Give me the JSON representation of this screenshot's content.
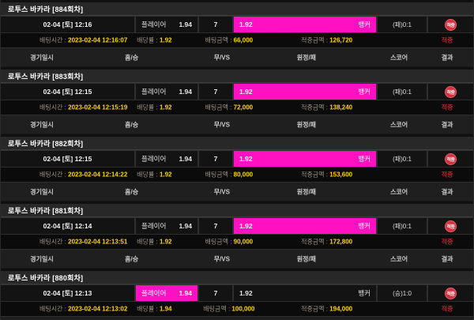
{
  "colors": {
    "accent_pink": "#ff10c0",
    "value_yellow": "#ffd400",
    "hit_badge_red": "#d42f3c",
    "hit_text_red": "#b5232b"
  },
  "labels": {
    "col_headers": [
      "경기일시",
      "홈/승",
      "무/VS",
      "원정/패",
      "스코어",
      "결과"
    ],
    "bet_time_label": "배팅시간 :",
    "odds_label": "배당률 :",
    "bet_amount_label": "배팅금액 :",
    "win_amount_label": "적중금액 :",
    "hit_text": "적중",
    "hit_badge": "적중"
  },
  "rounds": [
    {
      "title": "로투스 바카라 [884회차]",
      "datetime": "02-04 [토] 12:16",
      "player_label": "플레이어",
      "player_odds": "1.94",
      "tie_odds": "7",
      "banker_label": "뱅커",
      "banker_odds": "1.92",
      "picked": "banker",
      "score": "(패)0:1",
      "bet_time": "2023-02-04 12:16:07",
      "odds": "1.92",
      "bet_amount": "66,000",
      "win_amount": "126,720"
    },
    {
      "title": "로투스 바카라 [883회차]",
      "datetime": "02-04 [토] 12:15",
      "player_label": "플레이어",
      "player_odds": "1.94",
      "tie_odds": "7",
      "banker_label": "뱅커",
      "banker_odds": "1.92",
      "picked": "banker",
      "score": "(패)0:1",
      "bet_time": "2023-02-04 12:15:19",
      "odds": "1.92",
      "bet_amount": "72,000",
      "win_amount": "138,240"
    },
    {
      "title": "로투스 바카라 [882회차]",
      "datetime": "02-04 [토] 12:15",
      "player_label": "플레이어",
      "player_odds": "1.94",
      "tie_odds": "7",
      "banker_label": "뱅커",
      "banker_odds": "1.92",
      "picked": "banker",
      "score": "(패)0:1",
      "bet_time": "2023-02-04 12:14:22",
      "odds": "1.92",
      "bet_amount": "80,000",
      "win_amount": "153,600"
    },
    {
      "title": "로투스 바카라 [881회차]",
      "datetime": "02-04 [토] 12:14",
      "player_label": "플레이어",
      "player_odds": "1.94",
      "tie_odds": "7",
      "banker_label": "뱅커",
      "banker_odds": "1.92",
      "picked": "banker",
      "score": "(패)0:1",
      "bet_time": "2023-02-04 12:13:51",
      "odds": "1.92",
      "bet_amount": "90,000",
      "win_amount": "172,800"
    },
    {
      "title": "로투스 바카라 [880회차]",
      "datetime": "02-04 [토] 12:13",
      "player_label": "플레이어",
      "player_odds": "1.94",
      "tie_odds": "7",
      "banker_label": "뱅커",
      "banker_odds": "1.92",
      "picked": "player",
      "score": "(승)1:0",
      "bet_time": "2023-02-04 12:13:02",
      "odds": "1.94",
      "bet_amount": "100,000",
      "win_amount": "194,000"
    }
  ]
}
